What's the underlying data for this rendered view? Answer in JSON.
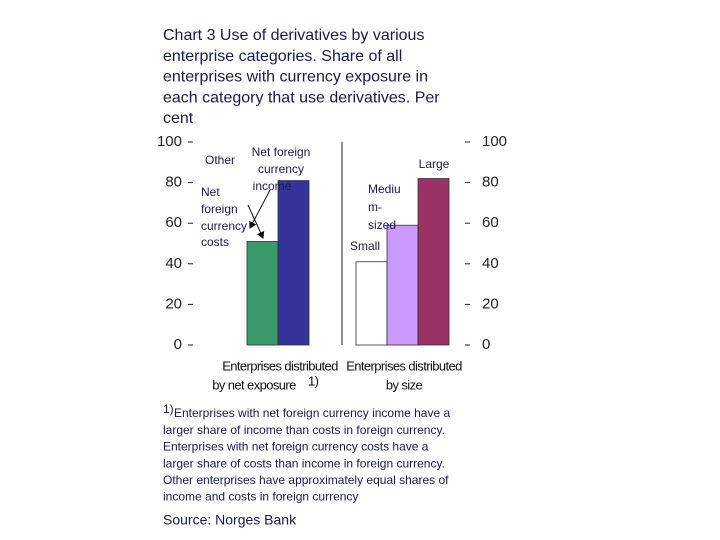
{
  "chart_data": {
    "type": "grouped-bar",
    "title_lines": [
      "Chart 3 Use of derivatives by various",
      "enterprise categories. Share of all",
      "enterprises with currency exposure in",
      "each category that use derivatives. Per",
      "cent"
    ],
    "ylim": [
      0,
      100
    ],
    "yticks": [
      0,
      20,
      40,
      60,
      80,
      100
    ],
    "y2lim": [
      0,
      100
    ],
    "y2ticks": [
      0,
      20,
      40,
      60,
      80,
      100
    ],
    "groups": [
      {
        "label_lines": [
          "Enterprises distributed",
          "by net exposure"
        ],
        "label_sup": "1)",
        "bars": [
          {
            "name_lines": [
              "Other"
            ],
            "value": null,
            "color": "#ffffff"
          },
          {
            "name_lines": [
              "Net",
              "foreign",
              "currency",
              "costs"
            ],
            "value": 51,
            "color": "#3a9a6a"
          },
          {
            "name_lines": [
              "Net foreign",
              "currency",
              "income"
            ],
            "value": 81,
            "color": "#333399"
          }
        ]
      },
      {
        "label_lines": [
          "Enterprises distributed",
          "by size"
        ],
        "bars": [
          {
            "name_lines": [
              "Small"
            ],
            "value": 41,
            "color": "#ffffff"
          },
          {
            "name_lines": [
              "Mediu",
              "m-",
              "sized"
            ],
            "value": 59,
            "color": "#cc99ff"
          },
          {
            "name_lines": [
              "Large"
            ],
            "value": 82,
            "color": "#993366"
          }
        ]
      }
    ],
    "footnote_marker": "1)",
    "footnote_lines": [
      "Enterprises with net foreign currency income have a",
      "larger share of income than costs in foreign currency.",
      "Enterprises with net foreign currency costs have a",
      "larger share of costs than income in foreign currency.",
      "Other enterprises have approximately equal shares of",
      "income and costs in foreign currency"
    ],
    "source": "Source: Norges Bank"
  }
}
